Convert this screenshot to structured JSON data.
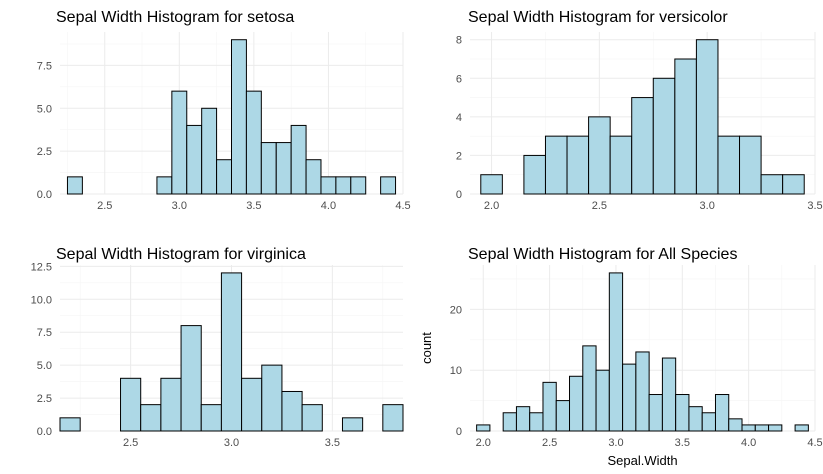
{
  "colors": {
    "bar_fill": "#add8e6",
    "bar_stroke": "#000000",
    "grid_major": "#ebebeb",
    "grid_minor": "#f5f5f5",
    "tick_text": "#4d4d4d"
  },
  "chart_data": [
    {
      "type": "bar",
      "title": "Sepal Width Histogram for setosa",
      "xlabel": "",
      "ylabel": "",
      "binwidth": 0.1,
      "xlim": [
        2.2,
        4.5
      ],
      "ylim": [
        0,
        9.45
      ],
      "xticks": [
        2.5,
        3.0,
        3.5,
        4.0,
        4.5
      ],
      "yticks": [
        0.0,
        2.5,
        5.0,
        7.5
      ],
      "xtick_labels": [
        "2.5",
        "3.0",
        "3.5",
        "4.0",
        "4.5"
      ],
      "ytick_labels": [
        "0.0",
        "2.5",
        "5.0",
        "7.5"
      ],
      "grid": true,
      "bins": [
        {
          "x": 2.3,
          "count": 1
        },
        {
          "x": 2.9,
          "count": 1
        },
        {
          "x": 3.0,
          "count": 6
        },
        {
          "x": 3.1,
          "count": 4
        },
        {
          "x": 3.2,
          "count": 5
        },
        {
          "x": 3.3,
          "count": 2
        },
        {
          "x": 3.4,
          "count": 9
        },
        {
          "x": 3.5,
          "count": 6
        },
        {
          "x": 3.6,
          "count": 3
        },
        {
          "x": 3.7,
          "count": 3
        },
        {
          "x": 3.8,
          "count": 4
        },
        {
          "x": 3.9,
          "count": 2
        },
        {
          "x": 4.0,
          "count": 1
        },
        {
          "x": 4.1,
          "count": 1
        },
        {
          "x": 4.2,
          "count": 1
        },
        {
          "x": 4.4,
          "count": 1
        }
      ]
    },
    {
      "type": "bar",
      "title": "Sepal Width Histogram for versicolor",
      "xlabel": "",
      "ylabel": "",
      "binwidth": 0.1,
      "xlim": [
        1.9,
        3.5
      ],
      "ylim": [
        0,
        8.4
      ],
      "xticks": [
        2.0,
        2.5,
        3.0,
        3.5
      ],
      "yticks": [
        0,
        2,
        4,
        6,
        8
      ],
      "xtick_labels": [
        "2.0",
        "2.5",
        "3.0",
        "3.5"
      ],
      "ytick_labels": [
        "0",
        "2",
        "4",
        "6",
        "8"
      ],
      "grid": true,
      "bins": [
        {
          "x": 2.0,
          "count": 1
        },
        {
          "x": 2.2,
          "count": 2
        },
        {
          "x": 2.3,
          "count": 3
        },
        {
          "x": 2.4,
          "count": 3
        },
        {
          "x": 2.5,
          "count": 4
        },
        {
          "x": 2.6,
          "count": 3
        },
        {
          "x": 2.7,
          "count": 5
        },
        {
          "x": 2.8,
          "count": 6
        },
        {
          "x": 2.9,
          "count": 7
        },
        {
          "x": 3.0,
          "count": 8
        },
        {
          "x": 3.1,
          "count": 3
        },
        {
          "x": 3.2,
          "count": 3
        },
        {
          "x": 3.3,
          "count": 1
        },
        {
          "x": 3.4,
          "count": 1
        }
      ]
    },
    {
      "type": "bar",
      "title": "Sepal Width Histogram for virginica",
      "xlabel": "",
      "ylabel": "",
      "binwidth": 0.1,
      "xlim": [
        2.15,
        3.85
      ],
      "ylim": [
        0,
        12.6
      ],
      "xticks": [
        2.5,
        3.0,
        3.5
      ],
      "yticks": [
        0.0,
        2.5,
        5.0,
        7.5,
        10.0,
        12.5
      ],
      "xtick_labels": [
        "2.5",
        "3.0",
        "3.5"
      ],
      "ytick_labels": [
        "0.0",
        "2.5",
        "5.0",
        "7.5",
        "10.0",
        "12.5"
      ],
      "grid": true,
      "bins": [
        {
          "x": 2.2,
          "count": 1
        },
        {
          "x": 2.5,
          "count": 4
        },
        {
          "x": 2.6,
          "count": 2
        },
        {
          "x": 2.7,
          "count": 4
        },
        {
          "x": 2.8,
          "count": 8
        },
        {
          "x": 2.9,
          "count": 2
        },
        {
          "x": 3.0,
          "count": 12
        },
        {
          "x": 3.1,
          "count": 4
        },
        {
          "x": 3.2,
          "count": 5
        },
        {
          "x": 3.3,
          "count": 3
        },
        {
          "x": 3.4,
          "count": 2
        },
        {
          "x": 3.6,
          "count": 1
        },
        {
          "x": 3.8,
          "count": 2
        }
      ]
    },
    {
      "type": "bar",
      "title": "Sepal Width Histogram for All Species",
      "xlabel": "Sepal.Width",
      "ylabel": "count",
      "binwidth": 0.1,
      "xlim": [
        1.9,
        4.5
      ],
      "ylim": [
        0,
        27.3
      ],
      "xticks": [
        2.0,
        2.5,
        3.0,
        3.5,
        4.0,
        4.5
      ],
      "yticks": [
        0,
        10,
        20
      ],
      "xtick_labels": [
        "2.0",
        "2.5",
        "3.0",
        "3.5",
        "4.0",
        "4.5"
      ],
      "ytick_labels": [
        "0",
        "10",
        "20"
      ],
      "grid": true,
      "bins": [
        {
          "x": 2.0,
          "count": 1
        },
        {
          "x": 2.2,
          "count": 3
        },
        {
          "x": 2.3,
          "count": 4
        },
        {
          "x": 2.4,
          "count": 3
        },
        {
          "x": 2.5,
          "count": 8
        },
        {
          "x": 2.6,
          "count": 5
        },
        {
          "x": 2.7,
          "count": 9
        },
        {
          "x": 2.8,
          "count": 14
        },
        {
          "x": 2.9,
          "count": 10
        },
        {
          "x": 3.0,
          "count": 26
        },
        {
          "x": 3.1,
          "count": 11
        },
        {
          "x": 3.2,
          "count": 13
        },
        {
          "x": 3.3,
          "count": 6
        },
        {
          "x": 3.4,
          "count": 12
        },
        {
          "x": 3.5,
          "count": 6
        },
        {
          "x": 3.6,
          "count": 4
        },
        {
          "x": 3.7,
          "count": 3
        },
        {
          "x": 3.8,
          "count": 6
        },
        {
          "x": 3.9,
          "count": 2
        },
        {
          "x": 4.0,
          "count": 1
        },
        {
          "x": 4.1,
          "count": 1
        },
        {
          "x": 4.2,
          "count": 1
        },
        {
          "x": 4.4,
          "count": 1
        }
      ]
    }
  ]
}
